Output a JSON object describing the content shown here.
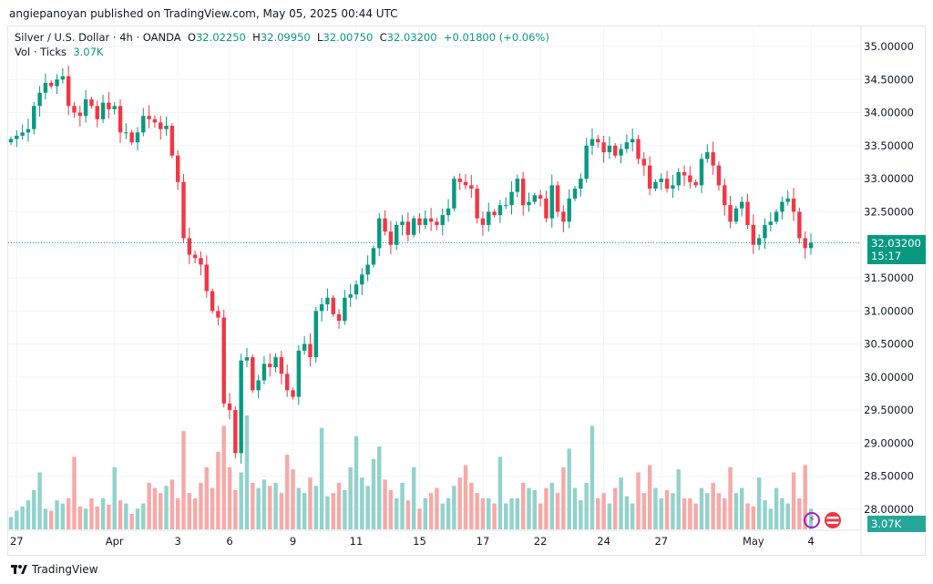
{
  "header": {
    "published": "angiepanoyan published on TradingView.com, May 05, 2025 00:44 UTC"
  },
  "legend": {
    "symbol": "Silver / U.S. Dollar · 4h · OANDA",
    "o_label": "O",
    "o": "32.02250",
    "h_label": "H",
    "h": "32.09950",
    "l_label": "L",
    "l": "32.00750",
    "c_label": "C",
    "c": "32.03200",
    "change": "+0.01800 (+0.06%)",
    "vol_label": "Vol · Ticks",
    "vol": "3.07K"
  },
  "price_label": {
    "price": "32.03200",
    "countdown": "15:17"
  },
  "volume_label": "3.07K",
  "footer": {
    "brand": "TradingView"
  },
  "icons": [
    "lightning-icon",
    "us-flag-icon"
  ],
  "colors": {
    "up": "#089981",
    "down": "#f23645",
    "up_vol": "#92d2cc",
    "down_vol": "#f7a9a7"
  },
  "chart_data": {
    "type": "candlestick",
    "title": "Silver / U.S. Dollar · 4h · OANDA",
    "ylim": [
      28.0,
      35.0
    ],
    "yticks": [
      "35.00000",
      "34.50000",
      "34.00000",
      "33.50000",
      "33.00000",
      "32.50000",
      "32.00000",
      "31.50000",
      "31.00000",
      "30.50000",
      "30.00000",
      "29.50000",
      "29.00000",
      "28.50000",
      "28.00000"
    ],
    "xticks": [
      {
        "label": "27",
        "i": 1
      },
      {
        "label": "Apr",
        "i": 18
      },
      {
        "label": "3",
        "i": 29
      },
      {
        "label": "6",
        "i": 38
      },
      {
        "label": "9",
        "i": 49
      },
      {
        "label": "11",
        "i": 60
      },
      {
        "label": "15",
        "i": 71
      },
      {
        "label": "17",
        "i": 82
      },
      {
        "label": "22",
        "i": 92
      },
      {
        "label": "24",
        "i": 103
      },
      {
        "label": "27",
        "i": 113
      },
      {
        "label": "May",
        "i": 129
      },
      {
        "label": "4",
        "i": 139
      }
    ],
    "first_open": 33.55,
    "close": [
      33.6,
      33.65,
      33.7,
      33.75,
      34.1,
      34.3,
      34.45,
      34.4,
      34.5,
      34.55,
      34.1,
      34.0,
      33.95,
      34.2,
      34.1,
      33.9,
      34.15,
      34.05,
      34.1,
      33.7,
      33.7,
      33.55,
      33.7,
      33.95,
      33.9,
      33.85,
      33.75,
      33.8,
      33.35,
      32.95,
      32.1,
      31.85,
      31.8,
      31.7,
      31.3,
      31.0,
      30.9,
      29.6,
      29.5,
      28.85,
      30.25,
      30.3,
      29.8,
      29.95,
      30.2,
      30.15,
      30.3,
      30.05,
      29.8,
      29.7,
      30.4,
      30.5,
      30.3,
      31.0,
      31.1,
      31.2,
      30.95,
      30.85,
      31.2,
      31.25,
      31.4,
      31.55,
      31.7,
      31.95,
      32.4,
      32.2,
      32.0,
      32.3,
      32.35,
      32.15,
      32.4,
      32.3,
      32.4,
      32.35,
      32.3,
      32.45,
      32.55,
      33.0,
      32.95,
      32.9,
      32.85,
      32.4,
      32.3,
      32.5,
      32.45,
      32.6,
      32.6,
      32.8,
      33.0,
      32.6,
      32.65,
      32.75,
      32.7,
      32.4,
      32.9,
      32.5,
      32.35,
      32.7,
      32.85,
      33.0,
      33.5,
      33.6,
      33.55,
      33.4,
      33.5,
      33.35,
      33.45,
      33.55,
      33.6,
      33.3,
      33.2,
      32.85,
      32.95,
      33.0,
      32.85,
      32.9,
      33.1,
      33.05,
      32.95,
      32.9,
      33.3,
      33.4,
      33.2,
      32.9,
      32.6,
      32.35,
      32.55,
      32.65,
      32.3,
      32.0,
      32.1,
      32.3,
      32.35,
      32.5,
      32.65,
      32.7,
      32.5,
      32.1,
      31.95,
      32.032
    ],
    "volume": [
      12,
      18,
      22,
      28,
      38,
      55,
      20,
      18,
      28,
      25,
      30,
      70,
      22,
      20,
      30,
      22,
      30,
      24,
      60,
      28,
      25,
      15,
      20,
      25,
      45,
      40,
      35,
      42,
      48,
      30,
      95,
      35,
      30,
      45,
      60,
      40,
      75,
      100,
      60,
      38,
      55,
      110,
      45,
      40,
      48,
      42,
      45,
      35,
      72,
      58,
      40,
      35,
      50,
      42,
      98,
      32,
      35,
      45,
      38,
      60,
      90,
      50,
      42,
      68,
      80,
      48,
      38,
      30,
      45,
      28,
      60,
      20,
      30,
      35,
      40,
      25,
      30,
      42,
      50,
      62,
      45,
      35,
      30,
      30,
      25,
      70,
      25,
      30,
      30,
      45,
      40,
      38,
      25,
      40,
      45,
      35,
      60,
      78,
      40,
      28,
      45,
      100,
      30,
      35,
      25,
      40,
      50,
      32,
      25,
      55,
      35,
      62,
      40,
      30,
      38,
      35,
      58,
      30,
      30,
      25,
      40,
      35,
      45,
      35,
      30,
      60,
      35,
      40,
      25,
      22,
      50,
      28,
      20,
      40,
      30,
      25,
      55,
      30,
      62,
      20
    ]
  }
}
